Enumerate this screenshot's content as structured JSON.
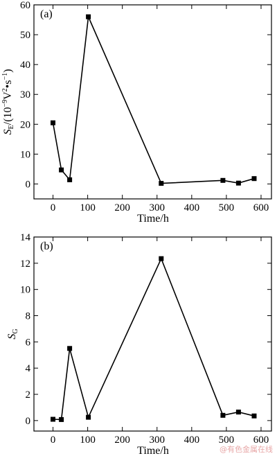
{
  "chart_data": [
    {
      "type": "line",
      "panel_label": "(a)",
      "ylabel": "S_E/(10^-9 V^2·s^-1)",
      "ylabel_parts": {
        "s": "S",
        "sub": "E",
        "pre": "/(10",
        "sup1": "−9",
        "mid": "V",
        "sup2": "2",
        "dot": "•s",
        "sup3": "−1",
        "end": ")"
      },
      "xlabel": "Time/h",
      "xlim": [
        -55,
        630
      ],
      "ylim": [
        -5,
        60
      ],
      "xticks": [
        0,
        100,
        200,
        300,
        400,
        500,
        600
      ],
      "yticks": [
        0,
        10,
        20,
        30,
        40,
        50,
        60
      ],
      "series": [
        {
          "x": [
            0,
            24,
            48,
            102,
            312,
            490,
            535,
            580
          ],
          "y": [
            20.5,
            4.7,
            1.4,
            56.0,
            0.2,
            1.2,
            0.3,
            1.8
          ]
        }
      ]
    },
    {
      "type": "line",
      "panel_label": "(b)",
      "ylabel": "S_G",
      "ylabel_parts": {
        "s": "S",
        "sub": "G"
      },
      "xlabel": "Time/h",
      "xlim": [
        -55,
        630
      ],
      "ylim": [
        -0.8,
        14
      ],
      "xticks": [
        0,
        100,
        200,
        300,
        400,
        500,
        600
      ],
      "yticks": [
        0,
        2,
        4,
        6,
        8,
        10,
        12,
        14
      ],
      "series": [
        {
          "x": [
            0,
            24,
            48,
            102,
            312,
            490,
            535,
            580
          ],
          "y": [
            0.1,
            0.08,
            5.5,
            0.25,
            12.35,
            0.4,
            0.65,
            0.35
          ]
        }
      ]
    }
  ],
  "watermark": "@有色金属在线"
}
